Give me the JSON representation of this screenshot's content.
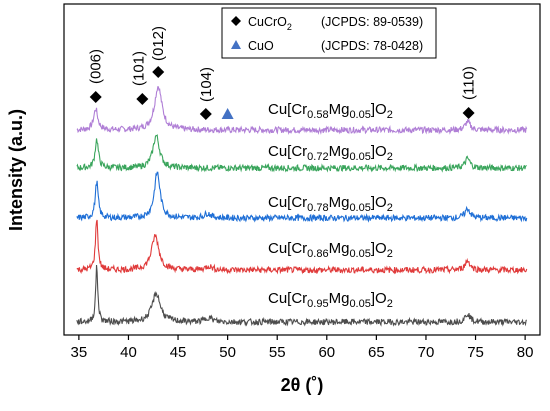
{
  "chart_data": {
    "type": "line",
    "xlabel": "2θ (˚)",
    "ylabel": "Intensity (a.u.)",
    "xlim": [
      33.5,
      81.5
    ],
    "xticks": [
      35,
      40,
      45,
      50,
      55,
      60,
      65,
      70,
      75,
      80
    ],
    "xtick_labels": [
      "35",
      "40",
      "45",
      "50",
      "55",
      "60",
      "65",
      "70",
      "75",
      "80"
    ],
    "legend": {
      "placement": "top-center",
      "entries": [
        {
          "marker": "diamond",
          "color": "#000000",
          "name": "CuCrO",
          "sub": "2",
          "ref": "(JCPDS: 89-0539)"
        },
        {
          "marker": "triangle",
          "color": "#4472c4",
          "name": "CuO",
          "sub": "",
          "ref": "(JCPDS: 78-0428)"
        }
      ]
    },
    "peak_annotations": [
      {
        "label": "(006)",
        "x": 36.7
      },
      {
        "label": "(101)",
        "x": 41.4
      },
      {
        "label": "(012)",
        "x": 43.0
      },
      {
        "label": "(104)",
        "x": 47.8
      },
      {
        "label": "(110)",
        "x": 74.3
      }
    ],
    "cuo_markers": [
      {
        "x": 50.0
      }
    ],
    "series": [
      {
        "name_parts": {
          "pre": "Cu[Cr",
          "cr": "0.58",
          "mid": "Mg",
          "mg": "0.05",
          "post": "]O",
          "o": "2"
        },
        "color": "#b07fd6",
        "offset": 4,
        "peaks": [
          [
            36.7,
            0.55,
            0.25
          ],
          [
            43.0,
            1.15,
            0.45
          ],
          [
            74.2,
            0.22,
            0.3
          ]
        ]
      },
      {
        "name_parts": {
          "pre": "Cu[Cr",
          "cr": "0.72",
          "mid": "Mg",
          "mg": "0.05",
          "post": "]O",
          "o": "2"
        },
        "color": "#3aa55c",
        "offset": 3,
        "peaks": [
          [
            36.8,
            0.75,
            0.2
          ],
          [
            42.8,
            0.85,
            0.4
          ],
          [
            74.2,
            0.25,
            0.3
          ]
        ]
      },
      {
        "name_parts": {
          "pre": "Cu[Cr",
          "cr": "0.78",
          "mid": "Mg",
          "mg": "0.05",
          "post": "]O",
          "o": "2"
        },
        "color": "#1f6fd6",
        "offset": 2,
        "peaks": [
          [
            36.8,
            0.95,
            0.18
          ],
          [
            42.9,
            1.2,
            0.35
          ],
          [
            48.0,
            0.12,
            0.4
          ],
          [
            74.2,
            0.25,
            0.3
          ]
        ]
      },
      {
        "name_parts": {
          "pre": "Cu[Cr",
          "cr": "0.86",
          "mid": "Mg",
          "mg": "0.05",
          "post": "]O",
          "o": "2"
        },
        "color": "#e03b3b",
        "offset": 1,
        "peaks": [
          [
            36.8,
            1.35,
            0.15
          ],
          [
            42.7,
            0.9,
            0.45
          ],
          [
            48.1,
            0.1,
            0.4
          ],
          [
            74.2,
            0.25,
            0.3
          ]
        ]
      },
      {
        "name_parts": {
          "pre": "Cu[Cr",
          "cr": "0.95",
          "mid": "Mg",
          "mg": "0.05",
          "post": "]O",
          "o": "2"
        },
        "color": "#4d4d4d",
        "offset": 0,
        "peaks": [
          [
            36.8,
            1.45,
            0.13
          ],
          [
            42.8,
            0.75,
            0.5
          ],
          [
            48.1,
            0.12,
            0.4
          ],
          [
            74.2,
            0.22,
            0.3
          ]
        ]
      }
    ]
  }
}
